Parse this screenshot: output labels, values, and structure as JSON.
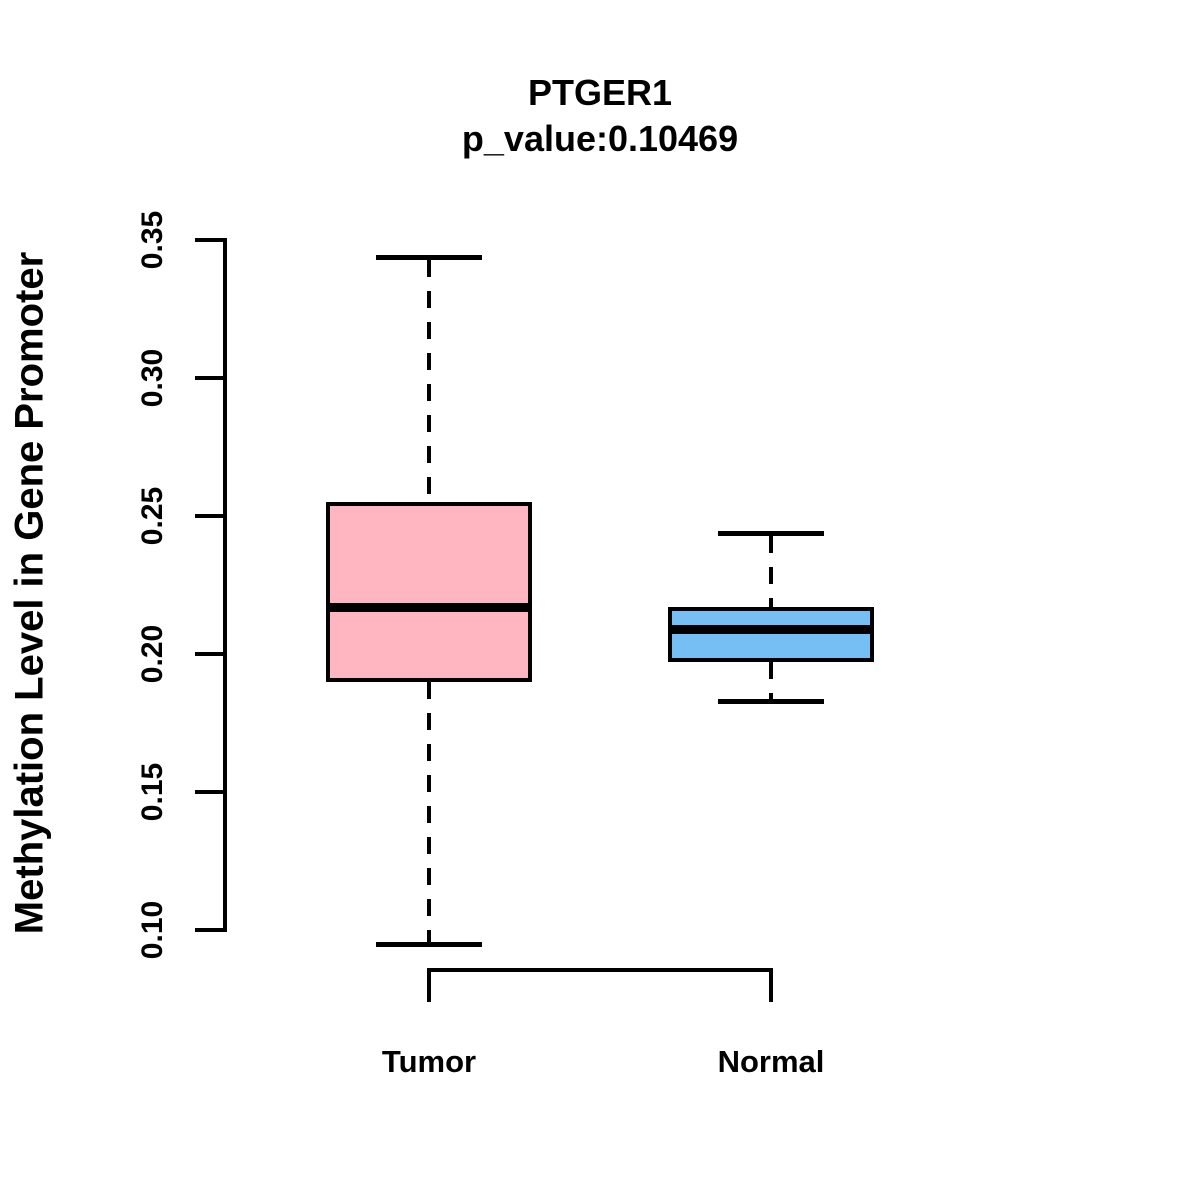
{
  "chart_data": {
    "type": "boxplot",
    "title": "PTGER1",
    "subtitle": "p_value:0.10469",
    "ylabel": "Methylation Level in Gene Promoter",
    "xlabel": "",
    "categories": [
      "Tumor",
      "Normal"
    ],
    "y_ticks": [
      "0.10",
      "0.15",
      "0.20",
      "0.25",
      "0.30",
      "0.35"
    ],
    "ylim": [
      0.1,
      0.35
    ],
    "grid": false,
    "legend": "none",
    "series": [
      {
        "name": "Tumor",
        "fill_color": "#FFB6C1",
        "whisker_low": 0.095,
        "q1": 0.19,
        "median": 0.217,
        "q3": 0.255,
        "whisker_high": 0.344,
        "outliers": []
      },
      {
        "name": "Normal",
        "fill_color": "#75BFF5",
        "whisker_low": 0.183,
        "q1": 0.197,
        "median": 0.209,
        "q3": 0.217,
        "whisker_high": 0.244,
        "outliers": []
      }
    ]
  },
  "colors": {
    "stroke": "#000000",
    "background": "#FFFFFF",
    "tumor_fill": "#FFB6C1",
    "normal_fill": "#75BFF5"
  }
}
